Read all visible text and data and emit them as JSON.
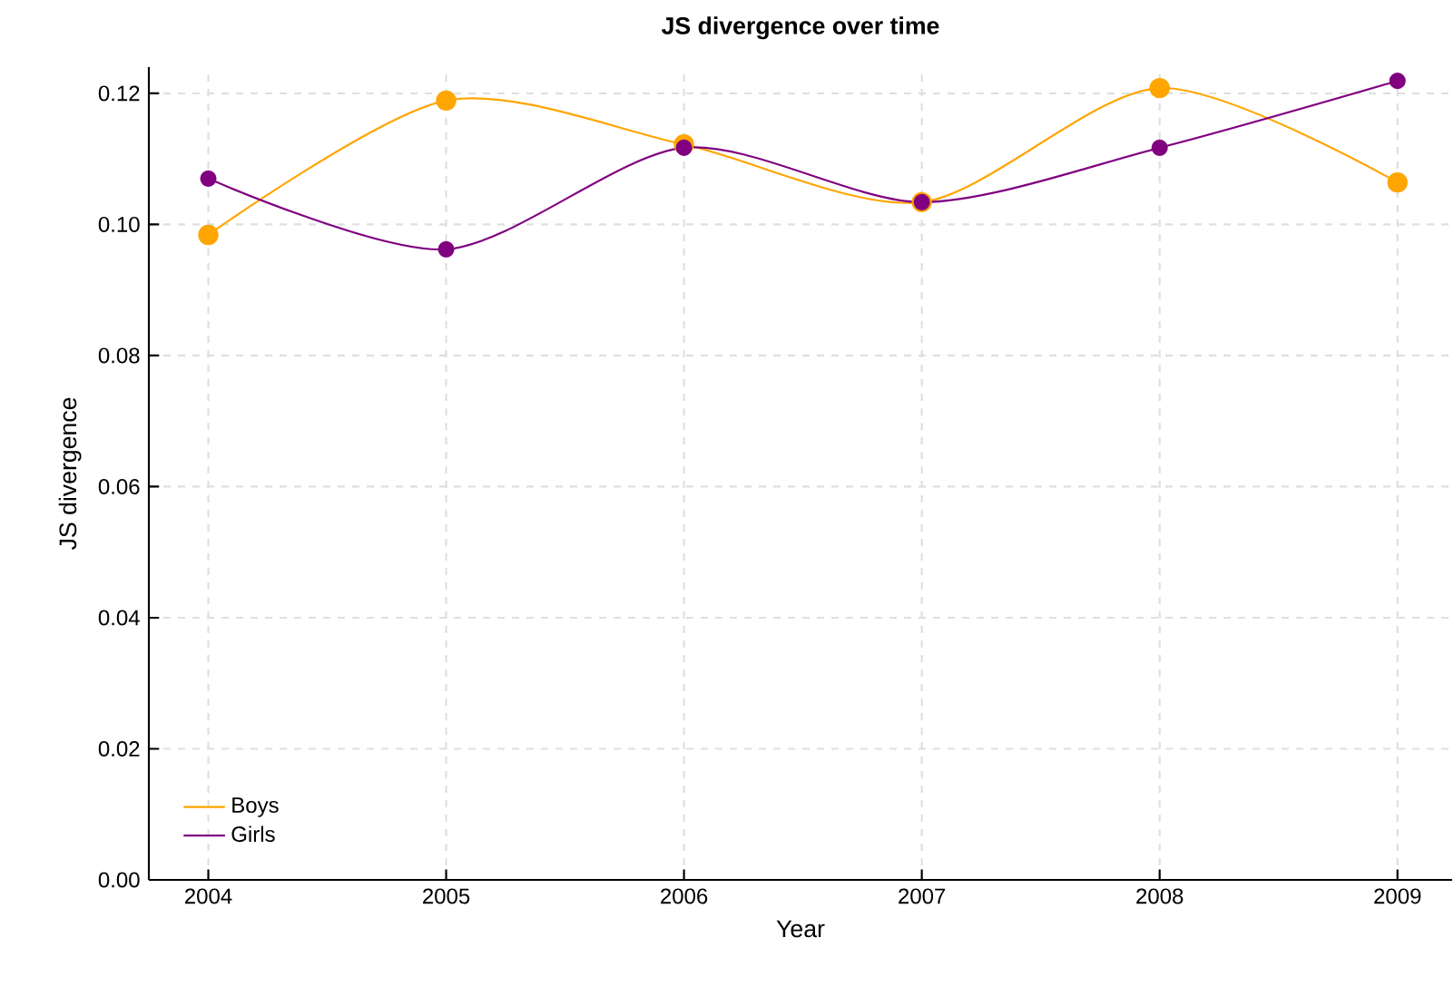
{
  "chart_data": {
    "type": "line",
    "title": "JS divergence over time",
    "xlabel": "Year",
    "ylabel": "JS divergence",
    "x": [
      2004,
      2005,
      2006,
      2007,
      2008,
      2009
    ],
    "series": [
      {
        "name": "Boys",
        "color": "#ffa500",
        "values": [
          0.0984,
          0.1189,
          0.1122,
          0.1034,
          0.1208,
          0.1064
        ]
      },
      {
        "name": "Girls",
        "color": "#800080",
        "values": [
          0.107,
          0.0962,
          0.1117,
          0.1034,
          0.1117,
          0.1219
        ]
      }
    ],
    "xlim": [
      2003.75,
      2009.23
    ],
    "ylim": [
      0,
      0.124
    ],
    "xticks": [
      2004,
      2005,
      2006,
      2007,
      2008,
      2009
    ],
    "yticks": [
      {
        "value": 0,
        "label": "0.00"
      },
      {
        "value": 0.02,
        "label": "0.02"
      },
      {
        "value": 0.04,
        "label": "0.04"
      },
      {
        "value": 0.06,
        "label": "0.06"
      },
      {
        "value": 0.08,
        "label": "0.08"
      },
      {
        "value": 0.1,
        "label": "0.10"
      },
      {
        "value": 0.12,
        "label": "0.12"
      }
    ],
    "grid": true,
    "legend": "bottom left",
    "marker": "circle",
    "line_style": "solid"
  }
}
